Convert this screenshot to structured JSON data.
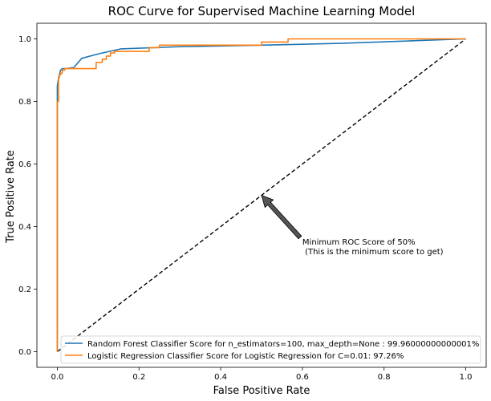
{
  "chart_data": {
    "type": "line",
    "title": "ROC Curve for Supervised Machine Learning Model",
    "xlabel": "False Positive Rate",
    "ylabel": "True Positive Rate",
    "xlim": [
      -0.05,
      1.05
    ],
    "ylim": [
      -0.05,
      1.05
    ],
    "xticks": [
      0.0,
      0.2,
      0.4,
      0.6,
      0.8,
      1.0
    ],
    "yticks": [
      0.0,
      0.2,
      0.4,
      0.6,
      0.8,
      1.0
    ],
    "tick_labels": [
      "0.0",
      "0.2",
      "0.4",
      "0.6",
      "0.8",
      "1.0"
    ],
    "grid": false,
    "legend_position": "lower-left",
    "series": [
      {
        "name": "Random Forest Classifier Score for n_estimators=100, max_depth=None : 99.96000000000001%",
        "color": "#1f77b4",
        "x": [
          0.0,
          0.0,
          0.003,
          0.005,
          0.008,
          0.012,
          0.02,
          0.04,
          0.06,
          0.1,
          0.155,
          0.3,
          0.5,
          0.7,
          1.0
        ],
        "y": [
          0.0,
          0.85,
          0.875,
          0.885,
          0.9,
          0.905,
          0.905,
          0.908,
          0.938,
          0.952,
          0.968,
          0.975,
          0.98,
          0.986,
          1.0
        ]
      },
      {
        "name": "Logistic Regression Classifier Score for Logistic Regression for C=0.01: 97.26%",
        "color": "#ff7f0e",
        "x": [
          0.0,
          0.0,
          0.003,
          0.003,
          0.005,
          0.005,
          0.008,
          0.008,
          0.012,
          0.012,
          0.018,
          0.018,
          0.095,
          0.095,
          0.11,
          0.11,
          0.12,
          0.12,
          0.13,
          0.13,
          0.14,
          0.14,
          0.225,
          0.225,
          0.25,
          0.25,
          0.5,
          0.5,
          0.565,
          0.565,
          1.0
        ],
        "y": [
          0.0,
          0.8,
          0.8,
          0.875,
          0.875,
          0.885,
          0.885,
          0.89,
          0.89,
          0.9,
          0.9,
          0.905,
          0.905,
          0.925,
          0.925,
          0.935,
          0.935,
          0.945,
          0.945,
          0.955,
          0.955,
          0.96,
          0.96,
          0.972,
          0.972,
          0.98,
          0.98,
          0.99,
          0.99,
          1.0,
          1.0
        ]
      }
    ],
    "reference_line": {
      "x": [
        0.0,
        1.0
      ],
      "y": [
        0.0,
        1.0
      ],
      "color": "#000000",
      "style": "dashed"
    },
    "annotation": {
      "text_line1": "Minimum ROC Score of 50%",
      "text_line2": " (This is the minimum score to get)",
      "point": [
        0.5,
        0.5
      ],
      "text_at": [
        0.6,
        0.35
      ],
      "arrow_color": "#555555"
    }
  }
}
